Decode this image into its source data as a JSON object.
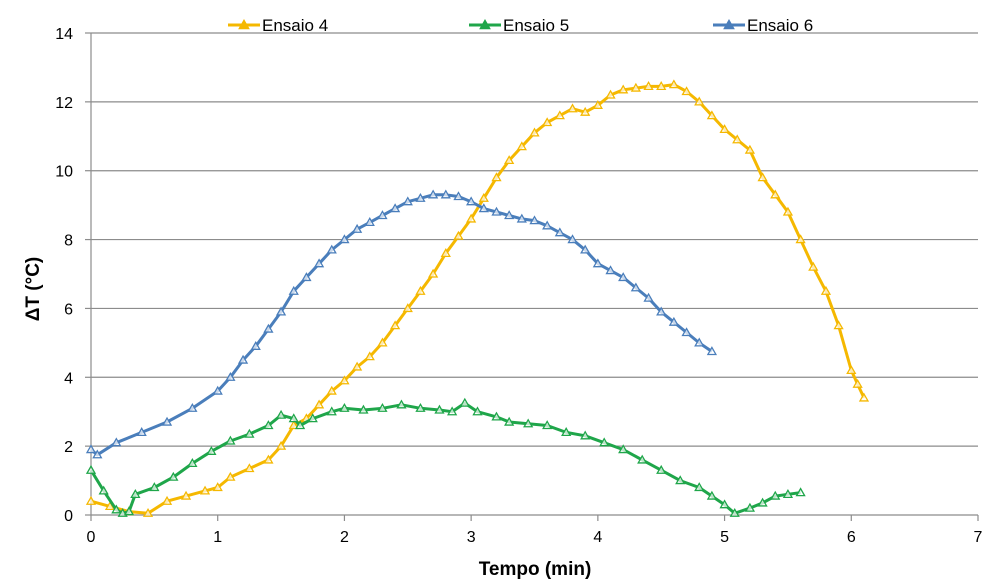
{
  "chart_data": {
    "type": "line",
    "title": "",
    "xlabel": "Tempo (min)",
    "ylabel": "ΔT (°C)",
    "xlim": [
      0,
      7
    ],
    "ylim": [
      0,
      14
    ],
    "xticks": [
      0,
      1,
      2,
      3,
      4,
      5,
      6,
      7
    ],
    "yticks": [
      0,
      2,
      4,
      6,
      8,
      10,
      12,
      14
    ],
    "grid": "horizontal",
    "legend_position": "top",
    "marker": "triangle",
    "series": [
      {
        "name": "Ensaio 4",
        "color": "#F5B800",
        "points": [
          [
            0,
            0.4
          ],
          [
            0.15,
            0.25
          ],
          [
            0.3,
            0.1
          ],
          [
            0.45,
            0.05
          ],
          [
            0.6,
            0.4
          ],
          [
            0.75,
            0.55
          ],
          [
            0.9,
            0.7
          ],
          [
            1.0,
            0.8
          ],
          [
            1.1,
            1.1
          ],
          [
            1.25,
            1.35
          ],
          [
            1.4,
            1.6
          ],
          [
            1.5,
            2.0
          ],
          [
            1.6,
            2.6
          ],
          [
            1.7,
            2.8
          ],
          [
            1.8,
            3.2
          ],
          [
            1.9,
            3.6
          ],
          [
            2.0,
            3.9
          ],
          [
            2.1,
            4.3
          ],
          [
            2.2,
            4.6
          ],
          [
            2.3,
            5.0
          ],
          [
            2.4,
            5.5
          ],
          [
            2.5,
            6.0
          ],
          [
            2.6,
            6.5
          ],
          [
            2.7,
            7.0
          ],
          [
            2.8,
            7.6
          ],
          [
            2.9,
            8.1
          ],
          [
            3.0,
            8.6
          ],
          [
            3.1,
            9.2
          ],
          [
            3.2,
            9.8
          ],
          [
            3.3,
            10.3
          ],
          [
            3.4,
            10.7
          ],
          [
            3.5,
            11.1
          ],
          [
            3.6,
            11.4
          ],
          [
            3.7,
            11.6
          ],
          [
            3.8,
            11.8
          ],
          [
            3.9,
            11.7
          ],
          [
            4.0,
            11.9
          ],
          [
            4.1,
            12.2
          ],
          [
            4.2,
            12.35
          ],
          [
            4.3,
            12.4
          ],
          [
            4.4,
            12.45
          ],
          [
            4.5,
            12.45
          ],
          [
            4.6,
            12.5
          ],
          [
            4.7,
            12.3
          ],
          [
            4.8,
            12.0
          ],
          [
            4.9,
            11.6
          ],
          [
            5.0,
            11.2
          ],
          [
            5.1,
            10.9
          ],
          [
            5.2,
            10.6
          ],
          [
            5.3,
            9.8
          ],
          [
            5.4,
            9.3
          ],
          [
            5.5,
            8.8
          ],
          [
            5.6,
            8.0
          ],
          [
            5.7,
            7.2
          ],
          [
            5.8,
            6.5
          ],
          [
            5.9,
            5.5
          ],
          [
            6.0,
            4.2
          ],
          [
            6.05,
            3.8
          ],
          [
            6.1,
            3.4
          ]
        ]
      },
      {
        "name": "Ensaio 5",
        "color": "#1FA64A",
        "points": [
          [
            0,
            1.3
          ],
          [
            0.1,
            0.7
          ],
          [
            0.2,
            0.15
          ],
          [
            0.25,
            0.05
          ],
          [
            0.3,
            0.1
          ],
          [
            0.35,
            0.6
          ],
          [
            0.5,
            0.8
          ],
          [
            0.65,
            1.1
          ],
          [
            0.8,
            1.5
          ],
          [
            0.95,
            1.85
          ],
          [
            1.1,
            2.15
          ],
          [
            1.25,
            2.35
          ],
          [
            1.4,
            2.6
          ],
          [
            1.5,
            2.9
          ],
          [
            1.6,
            2.8
          ],
          [
            1.65,
            2.6
          ],
          [
            1.75,
            2.8
          ],
          [
            1.9,
            3.0
          ],
          [
            2.0,
            3.1
          ],
          [
            2.15,
            3.05
          ],
          [
            2.3,
            3.1
          ],
          [
            2.45,
            3.2
          ],
          [
            2.6,
            3.1
          ],
          [
            2.75,
            3.05
          ],
          [
            2.85,
            3.0
          ],
          [
            2.95,
            3.25
          ],
          [
            3.05,
            3.0
          ],
          [
            3.2,
            2.85
          ],
          [
            3.3,
            2.7
          ],
          [
            3.45,
            2.65
          ],
          [
            3.6,
            2.6
          ],
          [
            3.75,
            2.4
          ],
          [
            3.9,
            2.3
          ],
          [
            4.05,
            2.1
          ],
          [
            4.2,
            1.9
          ],
          [
            4.35,
            1.6
          ],
          [
            4.5,
            1.3
          ],
          [
            4.65,
            1.0
          ],
          [
            4.8,
            0.8
          ],
          [
            4.9,
            0.55
          ],
          [
            5.0,
            0.3
          ],
          [
            5.08,
            0.05
          ],
          [
            5.2,
            0.2
          ],
          [
            5.3,
            0.35
          ],
          [
            5.4,
            0.55
          ],
          [
            5.5,
            0.6
          ],
          [
            5.6,
            0.65
          ]
        ]
      },
      {
        "name": "Ensaio 6",
        "color": "#4A7EBB",
        "points": [
          [
            0,
            1.9
          ],
          [
            0.05,
            1.75
          ],
          [
            0.2,
            2.1
          ],
          [
            0.4,
            2.4
          ],
          [
            0.6,
            2.7
          ],
          [
            0.8,
            3.1
          ],
          [
            1.0,
            3.6
          ],
          [
            1.1,
            4.0
          ],
          [
            1.2,
            4.5
          ],
          [
            1.3,
            4.9
          ],
          [
            1.4,
            5.4
          ],
          [
            1.5,
            5.9
          ],
          [
            1.6,
            6.5
          ],
          [
            1.7,
            6.9
          ],
          [
            1.8,
            7.3
          ],
          [
            1.9,
            7.7
          ],
          [
            2.0,
            8.0
          ],
          [
            2.1,
            8.3
          ],
          [
            2.2,
            8.5
          ],
          [
            2.3,
            8.7
          ],
          [
            2.4,
            8.9
          ],
          [
            2.5,
            9.1
          ],
          [
            2.6,
            9.2
          ],
          [
            2.7,
            9.3
          ],
          [
            2.8,
            9.3
          ],
          [
            2.9,
            9.25
          ],
          [
            3.0,
            9.1
          ],
          [
            3.1,
            8.9
          ],
          [
            3.2,
            8.8
          ],
          [
            3.3,
            8.7
          ],
          [
            3.4,
            8.6
          ],
          [
            3.5,
            8.55
          ],
          [
            3.6,
            8.4
          ],
          [
            3.7,
            8.2
          ],
          [
            3.8,
            8.0
          ],
          [
            3.9,
            7.7
          ],
          [
            4.0,
            7.3
          ],
          [
            4.1,
            7.1
          ],
          [
            4.2,
            6.9
          ],
          [
            4.3,
            6.6
          ],
          [
            4.4,
            6.3
          ],
          [
            4.5,
            5.9
          ],
          [
            4.6,
            5.6
          ],
          [
            4.7,
            5.3
          ],
          [
            4.8,
            5.0
          ],
          [
            4.9,
            4.75
          ]
        ]
      }
    ]
  }
}
